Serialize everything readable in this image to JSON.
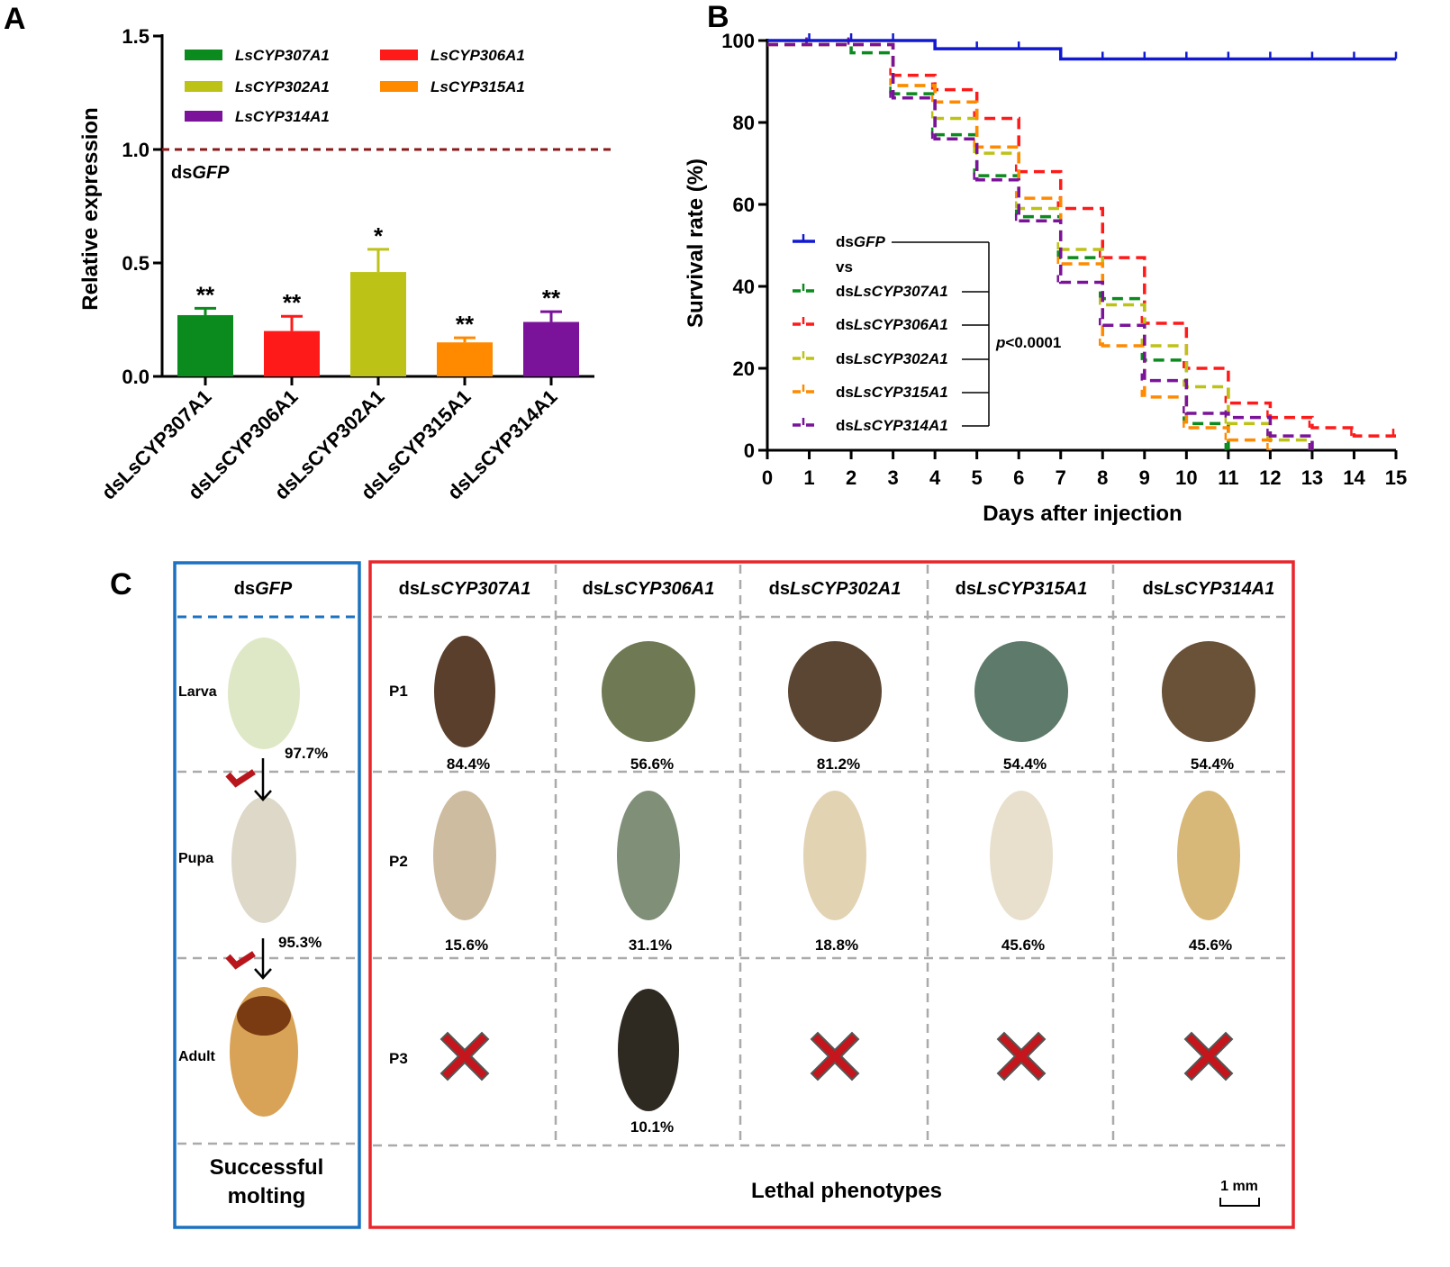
{
  "panel_letters": {
    "a": "A",
    "b": "B",
    "c": "C"
  },
  "colors": {
    "green": "#0b8a1e",
    "red": "#ff1a1a",
    "olive": "#bdc217",
    "orange": "#ff8a00",
    "purple": "#7a139a",
    "blue": "#1018d0",
    "dashline": "#8b1a1a",
    "box_blue": "#1c72c0",
    "box_red": "#e8262b",
    "cross": "#c4161c"
  },
  "chart_data": [
    {
      "type": "bar",
      "panel": "A",
      "ylabel": "Relative expression",
      "ylim": [
        0,
        1.5
      ],
      "yticks": [
        "0.0",
        "0.5",
        "1.0",
        "1.5"
      ],
      "categories": [
        "dsLsCYP307A1",
        "dsLsCYP306A1",
        "dsLsCYP302A1",
        "dsLsCYP315A1",
        "dsLsCYP314A1"
      ],
      "values": [
        0.27,
        0.2,
        0.46,
        0.15,
        0.24
      ],
      "errors": [
        0.03,
        0.065,
        0.1,
        0.02,
        0.045
      ],
      "significance": [
        "**",
        "**",
        "*",
        "**",
        "**"
      ],
      "bar_colors": [
        "#0b8a1e",
        "#ff1a1a",
        "#bdc217",
        "#ff8a00",
        "#7a139a"
      ],
      "reference_line": {
        "value": 1.0,
        "label_prefix": "ds",
        "label_italic": "GFP"
      },
      "legend": [
        {
          "name": "LsCYP307A1",
          "color": "#0b8a1e"
        },
        {
          "name": "LsCYP306A1",
          "color": "#ff1a1a"
        },
        {
          "name": "LsCYP302A1",
          "color": "#bdc217"
        },
        {
          "name": "LsCYP315A1",
          "color": "#ff8a00"
        },
        {
          "name": "LsCYP314A1",
          "color": "#7a139a"
        }
      ]
    },
    {
      "type": "line",
      "panel": "B",
      "step": true,
      "xlabel": "Days after injection",
      "ylabel": "Survival rate (%)",
      "xlim": [
        0,
        15
      ],
      "ylim": [
        0,
        100
      ],
      "xticks": [
        "0",
        "1",
        "2",
        "3",
        "4",
        "5",
        "6",
        "7",
        "8",
        "9",
        "10",
        "11",
        "12",
        "13",
        "14",
        "15"
      ],
      "yticks": [
        "0",
        "20",
        "40",
        "60",
        "80",
        "100"
      ],
      "annotation": {
        "p_italic": "p",
        "p_rest": "<0.0001",
        "vs": "vs"
      },
      "series": [
        {
          "prefix": "ds",
          "name": "GFP",
          "color": "#1018d0",
          "dashed": false,
          "x": [
            0,
            4,
            7,
            15
          ],
          "y": [
            100,
            98,
            95.5,
            95.5
          ],
          "censor": [
            1,
            2,
            3,
            5,
            6,
            8,
            9,
            10,
            11,
            12,
            13,
            14,
            15
          ]
        },
        {
          "prefix": "ds",
          "name": "LsCYP307A1",
          "color": "#0b8a1e",
          "dashed": true,
          "x": [
            0,
            2,
            3,
            4,
            5,
            6,
            7,
            8,
            9,
            10,
            11
          ],
          "y": [
            99,
            97,
            87,
            77,
            67,
            57,
            47,
            37,
            22,
            6.5,
            0
          ],
          "censor": [
            1,
            3,
            4,
            5,
            6,
            7,
            8,
            9,
            10,
            11
          ]
        },
        {
          "prefix": "ds",
          "name": "LsCYP306A1",
          "color": "#ff1a1a",
          "dashed": true,
          "x": [
            0,
            3,
            4,
            5,
            6,
            7,
            8,
            9,
            10,
            11,
            12,
            13,
            14,
            15
          ],
          "y": [
            99,
            91.5,
            88,
            81,
            68,
            59,
            47,
            31,
            20,
            11.5,
            8,
            5.5,
            3.5,
            3.5
          ],
          "censor": [
            1,
            2,
            3,
            4,
            5,
            6,
            7,
            8,
            9,
            10,
            11,
            12,
            13,
            14,
            15
          ]
        },
        {
          "prefix": "ds",
          "name": "LsCYP302A1",
          "color": "#bdc217",
          "dashed": true,
          "x": [
            0,
            3,
            4,
            5,
            6,
            7,
            8,
            9,
            10,
            11,
            12,
            13
          ],
          "y": [
            99,
            89,
            81,
            72.5,
            59,
            49,
            35.5,
            25.5,
            15.5,
            6.5,
            2.5,
            0
          ],
          "censor": [
            1,
            2,
            3,
            4,
            5,
            6,
            7,
            8,
            9,
            10,
            11,
            12,
            13
          ]
        },
        {
          "prefix": "ds",
          "name": "LsCYP315A1",
          "color": "#ff8a00",
          "dashed": true,
          "x": [
            0,
            3,
            4,
            5,
            6,
            7,
            8,
            9,
            10,
            11,
            12
          ],
          "y": [
            99,
            89,
            85,
            74,
            61.5,
            45.5,
            25.5,
            13,
            5.5,
            2.5,
            0
          ],
          "censor": [
            1,
            2,
            3,
            4,
            5,
            6,
            7,
            8,
            9,
            10,
            11,
            12
          ]
        },
        {
          "prefix": "ds",
          "name": "LsCYP314A1",
          "color": "#7a139a",
          "dashed": true,
          "x": [
            0,
            3,
            4,
            5,
            6,
            7,
            8,
            9,
            10,
            11,
            12,
            13
          ],
          "y": [
            99,
            86,
            76,
            66,
            56,
            41,
            30.5,
            17,
            9,
            8,
            3.5,
            0
          ],
          "censor": [
            1,
            2,
            3,
            4,
            5,
            6,
            7,
            8,
            9,
            10,
            11,
            12,
            13
          ]
        }
      ]
    }
  ],
  "panel_c": {
    "control": {
      "prefix": "ds",
      "italic": "GFP"
    },
    "control_stages": [
      "Larva",
      "Pupa",
      "Adult"
    ],
    "control_percents": [
      "97.7%",
      "95.3%"
    ],
    "control_footer": [
      "Successful",
      "molting"
    ],
    "columns": [
      {
        "prefix": "ds",
        "italic": "LsCYP307A1",
        "p1": "84.4%",
        "p2": "15.6%",
        "p3": ""
      },
      {
        "prefix": "ds",
        "italic": "LsCYP306A1",
        "p1": "56.6%",
        "p2": "31.1%",
        "p3": "10.1%"
      },
      {
        "prefix": "ds",
        "italic": "LsCYP302A1",
        "p1": "81.2%",
        "p2": "18.8%",
        "p3": ""
      },
      {
        "prefix": "ds",
        "italic": "LsCYP315A1",
        "p1": "54.4%",
        "p2": "45.6%",
        "p3": ""
      },
      {
        "prefix": "ds",
        "italic": "LsCYP314A1",
        "p1": "54.4%",
        "p2": "45.6%",
        "p3": ""
      }
    ],
    "row_labels": [
      "P1",
      "P2",
      "P3"
    ],
    "footer": "Lethal phenotypes",
    "scale_bar": "1 mm"
  }
}
